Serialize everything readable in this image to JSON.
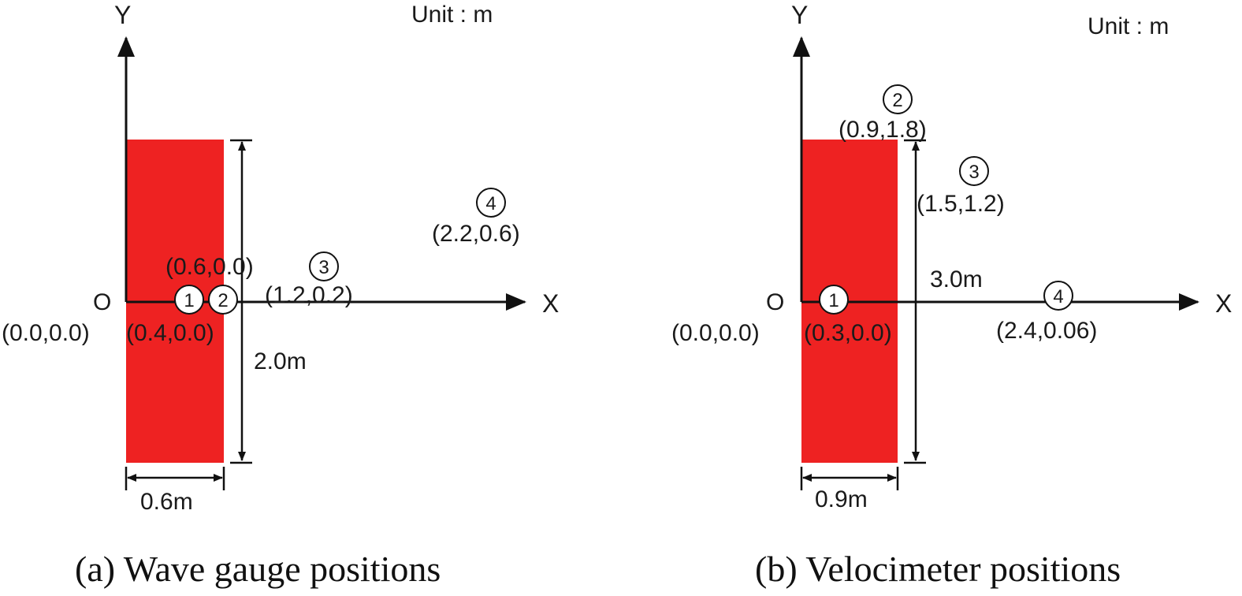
{
  "panels": [
    {
      "caption": "(a) Wave gauge positions",
      "unit_label": "Unit : m",
      "y_axis_label": "Y",
      "x_axis_label": "X",
      "origin_label": "O",
      "origin_coord": "(0.0,0.0)",
      "width_dim": "0.6m",
      "height_dim": "2.0m",
      "structure_color": "#ee2222",
      "points": [
        {
          "num": "1",
          "coord": "(0.4,0.0)"
        },
        {
          "num": "2",
          "coord": "(0.6,0.0)"
        },
        {
          "num": "3",
          "coord": "(1.2,0.2)"
        },
        {
          "num": "4",
          "coord": "(2.2,0.6)"
        }
      ]
    },
    {
      "caption": "(b) Velocimeter positions",
      "unit_label": "Unit : m",
      "y_axis_label": "Y",
      "x_axis_label": "X",
      "origin_label": "O",
      "origin_coord": "(0.0,0.0)",
      "width_dim": "0.9m",
      "height_dim": "3.0m",
      "structure_color": "#ee2222",
      "points": [
        {
          "num": "1",
          "coord": "(0.3,0.0)"
        },
        {
          "num": "2",
          "coord": "(0.9,1.8)"
        },
        {
          "num": "3",
          "coord": "(1.5,1.2)"
        },
        {
          "num": "4",
          "coord": "(2.4,0.06)"
        }
      ]
    }
  ]
}
